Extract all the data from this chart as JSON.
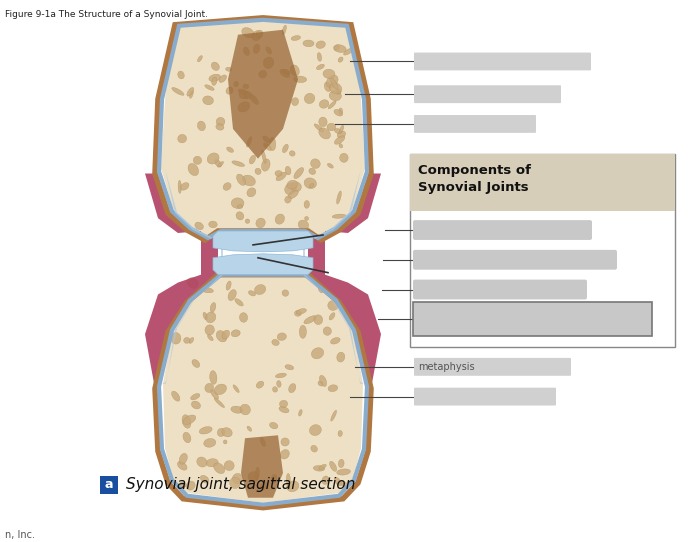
{
  "title": "Figure 9-1a The Structure of a Synovial Joint.",
  "caption": "Synovial joint, sagittal section",
  "caption_label": "a",
  "box_title": "Components of\nSynovial Joints",
  "box_title_bg": "#d6ceb8",
  "box_bg": "#ffffff",
  "box_border": "#888888",
  "label_bg": "#c8c8c8",
  "line_color": "#444444",
  "fig_bg": "#ffffff",
  "bone_fill": "#ede0c4",
  "bone_trabecular": "#c8a87a",
  "periosteum": "#b07840",
  "cartilage": "#b8d4e8",
  "synovial_membrane": "#b04060",
  "synovial_fluid_space": "#c85070",
  "marrow_brown": "#9a6838",
  "caption_box_color": "#1a4fa0"
}
